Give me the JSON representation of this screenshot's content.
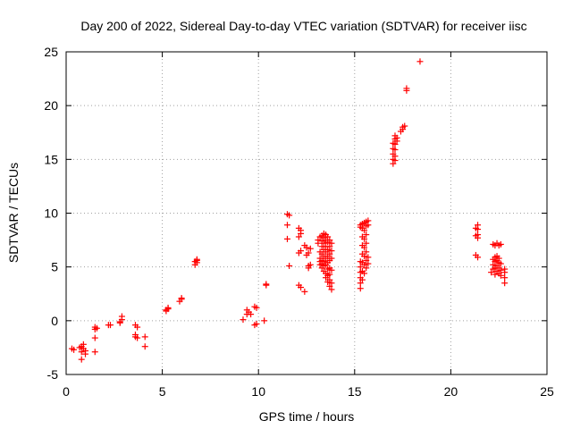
{
  "chart_data": {
    "type": "scatter",
    "title": "Day 200 of 2022, Sidereal Day-to-day VTEC variation (SDTVAR) for receiver iisc",
    "xlabel": "GPS time / hours",
    "ylabel": "SDTVAR / TECUs",
    "xlim": [
      0,
      25
    ],
    "ylim": [
      -5,
      25
    ],
    "xticks": [
      0,
      5,
      10,
      15,
      20,
      25
    ],
    "yticks": [
      -5,
      0,
      5,
      10,
      15,
      20,
      25
    ],
    "grid": true,
    "marker": "+",
    "series": [
      {
        "name": "SDTVAR",
        "color": "#ff0000",
        "points": [
          [
            0.3,
            -2.6
          ],
          [
            0.4,
            -2.7
          ],
          [
            0.8,
            -2.4
          ],
          [
            0.8,
            -2.9
          ],
          [
            0.8,
            -3.6
          ],
          [
            0.9,
            -2.2
          ],
          [
            0.9,
            -2.6
          ],
          [
            1.0,
            -2.8
          ],
          [
            1.0,
            -3.1
          ],
          [
            0.7,
            -2.5
          ],
          [
            1.5,
            -0.8
          ],
          [
            1.5,
            -0.6
          ],
          [
            1.6,
            -0.7
          ],
          [
            1.5,
            -1.6
          ],
          [
            1.5,
            -2.9
          ],
          [
            2.2,
            -0.4
          ],
          [
            2.3,
            -0.4
          ],
          [
            2.8,
            -0.1
          ],
          [
            2.9,
            0.1
          ],
          [
            2.9,
            0.4
          ],
          [
            2.8,
            -0.2
          ],
          [
            3.6,
            -0.4
          ],
          [
            3.7,
            -0.6
          ],
          [
            3.6,
            -1.3
          ],
          [
            3.7,
            -1.6
          ],
          [
            3.6,
            -1.5
          ],
          [
            4.1,
            -1.5
          ],
          [
            4.1,
            -2.4
          ],
          [
            5.2,
            1.0
          ],
          [
            5.3,
            1.1
          ],
          [
            5.3,
            1.2
          ],
          [
            5.2,
            0.9
          ],
          [
            5.9,
            1.8
          ],
          [
            6.0,
            2.0
          ],
          [
            6.0,
            2.1
          ],
          [
            6.7,
            5.2
          ],
          [
            6.8,
            5.4
          ],
          [
            6.8,
            5.6
          ],
          [
            6.8,
            5.7
          ],
          [
            6.7,
            5.5
          ],
          [
            9.2,
            0.1
          ],
          [
            9.4,
            0.6
          ],
          [
            9.4,
            1.0
          ],
          [
            9.5,
            0.8
          ],
          [
            9.6,
            0.6
          ],
          [
            9.8,
            1.3
          ],
          [
            9.9,
            1.2
          ],
          [
            9.8,
            -0.4
          ],
          [
            9.9,
            -0.3
          ],
          [
            10.3,
            0.0
          ],
          [
            10.4,
            3.3
          ],
          [
            10.4,
            3.4
          ],
          [
            11.5,
            9.9
          ],
          [
            11.6,
            9.8
          ],
          [
            11.5,
            8.9
          ],
          [
            11.5,
            7.6
          ],
          [
            11.6,
            5.1
          ],
          [
            12.1,
            8.6
          ],
          [
            12.2,
            8.4
          ],
          [
            12.2,
            8.1
          ],
          [
            12.1,
            7.8
          ],
          [
            12.1,
            6.3
          ],
          [
            12.2,
            6.5
          ],
          [
            12.1,
            3.3
          ],
          [
            12.2,
            3.1
          ],
          [
            12.4,
            2.7
          ],
          [
            12.4,
            7.0
          ],
          [
            12.5,
            6.8
          ],
          [
            12.5,
            6.1
          ],
          [
            12.6,
            6.3
          ],
          [
            12.7,
            6.7
          ],
          [
            12.6,
            5.1
          ],
          [
            12.7,
            5.2
          ],
          [
            12.6,
            4.9
          ],
          [
            13.1,
            7.2
          ],
          [
            13.1,
            7.5
          ],
          [
            13.2,
            7.8
          ],
          [
            13.2,
            6.4
          ],
          [
            13.2,
            5.8
          ],
          [
            13.2,
            5.5
          ],
          [
            13.2,
            5.2
          ],
          [
            13.3,
            7.9
          ],
          [
            13.3,
            7.4
          ],
          [
            13.3,
            6.9
          ],
          [
            13.3,
            6.2
          ],
          [
            13.3,
            5.6
          ],
          [
            13.3,
            5.3
          ],
          [
            13.3,
            4.9
          ],
          [
            13.4,
            8.1
          ],
          [
            13.4,
            7.7
          ],
          [
            13.4,
            7.2
          ],
          [
            13.4,
            6.6
          ],
          [
            13.4,
            6.0
          ],
          [
            13.4,
            5.5
          ],
          [
            13.4,
            5.1
          ],
          [
            13.4,
            4.6
          ],
          [
            13.5,
            8.0
          ],
          [
            13.5,
            7.5
          ],
          [
            13.5,
            6.9
          ],
          [
            13.5,
            6.4
          ],
          [
            13.5,
            5.8
          ],
          [
            13.5,
            5.2
          ],
          [
            13.5,
            4.4
          ],
          [
            13.5,
            4.0
          ],
          [
            13.6,
            7.8
          ],
          [
            13.6,
            7.3
          ],
          [
            13.6,
            6.6
          ],
          [
            13.6,
            6.0
          ],
          [
            13.6,
            5.4
          ],
          [
            13.6,
            4.8
          ],
          [
            13.6,
            4.2
          ],
          [
            13.6,
            3.6
          ],
          [
            13.7,
            7.5
          ],
          [
            13.7,
            6.9
          ],
          [
            13.7,
            6.2
          ],
          [
            13.7,
            5.6
          ],
          [
            13.7,
            4.9
          ],
          [
            13.7,
            4.3
          ],
          [
            13.7,
            3.8
          ],
          [
            13.7,
            3.2
          ],
          [
            13.8,
            7.2
          ],
          [
            13.8,
            6.5
          ],
          [
            13.8,
            5.8
          ],
          [
            13.8,
            4.7
          ],
          [
            13.8,
            3.5
          ],
          [
            13.8,
            2.9
          ],
          [
            15.3,
            3.0
          ],
          [
            15.3,
            3.5
          ],
          [
            15.3,
            4.0
          ],
          [
            15.3,
            4.5
          ],
          [
            15.3,
            5.0
          ],
          [
            15.3,
            5.5
          ],
          [
            15.3,
            8.7
          ],
          [
            15.3,
            8.9
          ],
          [
            15.4,
            3.8
          ],
          [
            15.4,
            4.6
          ],
          [
            15.4,
            5.4
          ],
          [
            15.4,
            6.2
          ],
          [
            15.4,
            7.0
          ],
          [
            15.4,
            7.8
          ],
          [
            15.4,
            8.6
          ],
          [
            15.4,
            9.0
          ],
          [
            15.5,
            4.4
          ],
          [
            15.5,
            5.2
          ],
          [
            15.5,
            6.0
          ],
          [
            15.5,
            6.8
          ],
          [
            15.5,
            7.6
          ],
          [
            15.5,
            8.4
          ],
          [
            15.5,
            9.1
          ],
          [
            15.6,
            4.9
          ],
          [
            15.6,
            5.6
          ],
          [
            15.6,
            6.4
          ],
          [
            15.6,
            7.2
          ],
          [
            15.6,
            8.0
          ],
          [
            15.6,
            8.8
          ],
          [
            15.6,
            9.2
          ],
          [
            15.7,
            5.3
          ],
          [
            15.7,
            5.9
          ],
          [
            15.7,
            8.9
          ],
          [
            15.7,
            9.3
          ],
          [
            17.0,
            14.6
          ],
          [
            17.0,
            15.0
          ],
          [
            17.0,
            15.5
          ],
          [
            17.0,
            16.0
          ],
          [
            17.0,
            16.5
          ],
          [
            17.1,
            14.9
          ],
          [
            17.1,
            15.3
          ],
          [
            17.1,
            15.9
          ],
          [
            17.1,
            16.4
          ],
          [
            17.1,
            16.9
          ],
          [
            17.1,
            17.2
          ],
          [
            17.2,
            16.7
          ],
          [
            17.2,
            17.0
          ],
          [
            17.4,
            17.6
          ],
          [
            17.5,
            17.8
          ],
          [
            17.5,
            18.0
          ],
          [
            17.6,
            18.1
          ],
          [
            17.7,
            21.4
          ],
          [
            17.7,
            21.6
          ],
          [
            18.4,
            24.1
          ],
          [
            21.3,
            8.6
          ],
          [
            21.4,
            8.9
          ],
          [
            21.4,
            8.5
          ],
          [
            21.3,
            7.9
          ],
          [
            21.4,
            7.7
          ],
          [
            21.4,
            8.0
          ],
          [
            21.3,
            6.1
          ],
          [
            21.4,
            5.9
          ],
          [
            22.2,
            7.1
          ],
          [
            22.3,
            7.0
          ],
          [
            22.4,
            7.2
          ],
          [
            22.5,
            7.0
          ],
          [
            22.6,
            7.1
          ],
          [
            22.1,
            4.5
          ],
          [
            22.2,
            4.8
          ],
          [
            22.2,
            5.2
          ],
          [
            22.2,
            5.7
          ],
          [
            22.3,
            4.3
          ],
          [
            22.3,
            4.9
          ],
          [
            22.3,
            5.5
          ],
          [
            22.3,
            5.9
          ],
          [
            22.4,
            4.6
          ],
          [
            22.4,
            5.1
          ],
          [
            22.4,
            5.6
          ],
          [
            22.4,
            6.0
          ],
          [
            22.5,
            4.4
          ],
          [
            22.5,
            4.9
          ],
          [
            22.5,
            5.4
          ],
          [
            22.5,
            5.8
          ],
          [
            22.6,
            4.2
          ],
          [
            22.6,
            4.7
          ],
          [
            22.6,
            5.3
          ],
          [
            22.8,
            4.5
          ],
          [
            22.8,
            4.0
          ],
          [
            22.8,
            3.5
          ],
          [
            22.8,
            4.8
          ]
        ]
      }
    ]
  }
}
